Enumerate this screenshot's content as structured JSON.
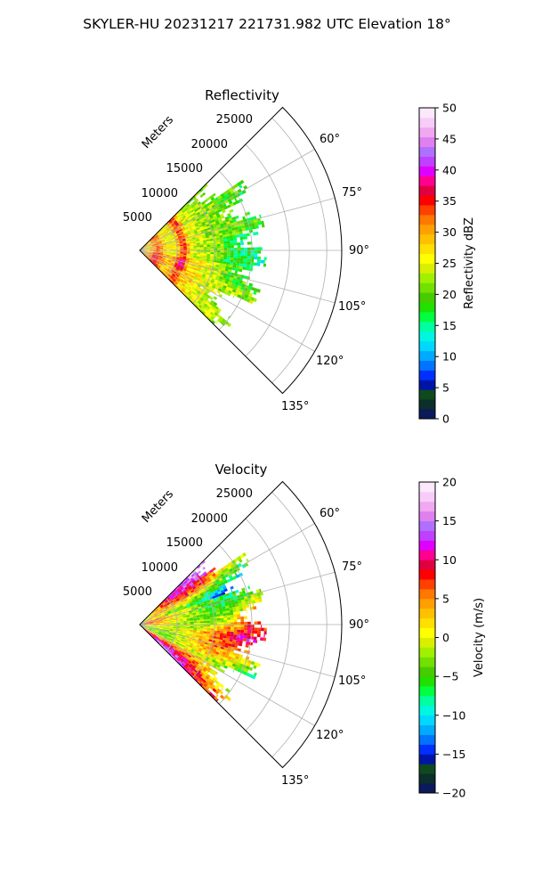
{
  "figure": {
    "title": "SKYLER-HU  20231217  221731.982 UTC Elevation 18°"
  },
  "chart_data": [
    {
      "type": "heatmap",
      "projection": "polar-sector",
      "title": "Reflectivity",
      "units": "dBZ",
      "colorbar_label": "Reflectivity dBZ",
      "theta_range_deg": [
        45,
        135
      ],
      "theta_ticks": [
        "60°",
        "75°",
        "90°",
        "105°",
        "120°",
        "135°"
      ],
      "radial_label": "Meters",
      "radial_ticks": [
        "5000",
        "10000",
        "15000",
        "20000",
        "25000"
      ],
      "rmax_m": 27000,
      "data_max_range_m": 17000,
      "colorbar_ticks": [
        "0",
        "5",
        "10",
        "15",
        "20",
        "25",
        "30",
        "35",
        "40",
        "45",
        "50"
      ],
      "vmin": 0,
      "vmax": 50,
      "grid": true
    },
    {
      "type": "heatmap",
      "projection": "polar-sector",
      "title": "Velocity",
      "units": "m/s",
      "colorbar_label": "Velocity (m/s)",
      "theta_range_deg": [
        45,
        135
      ],
      "theta_ticks": [
        "60°",
        "75°",
        "90°",
        "105°",
        "120°",
        "135°"
      ],
      "radial_label": "Meters",
      "radial_ticks": [
        "5000",
        "10000",
        "15000",
        "20000",
        "25000"
      ],
      "rmax_m": 27000,
      "data_max_range_m": 17000,
      "colorbar_ticks": [
        "−20",
        "−15",
        "−10",
        "−5",
        "0",
        "5",
        "10",
        "15",
        "20"
      ],
      "vmin": -20,
      "vmax": 20,
      "grid": true
    }
  ]
}
